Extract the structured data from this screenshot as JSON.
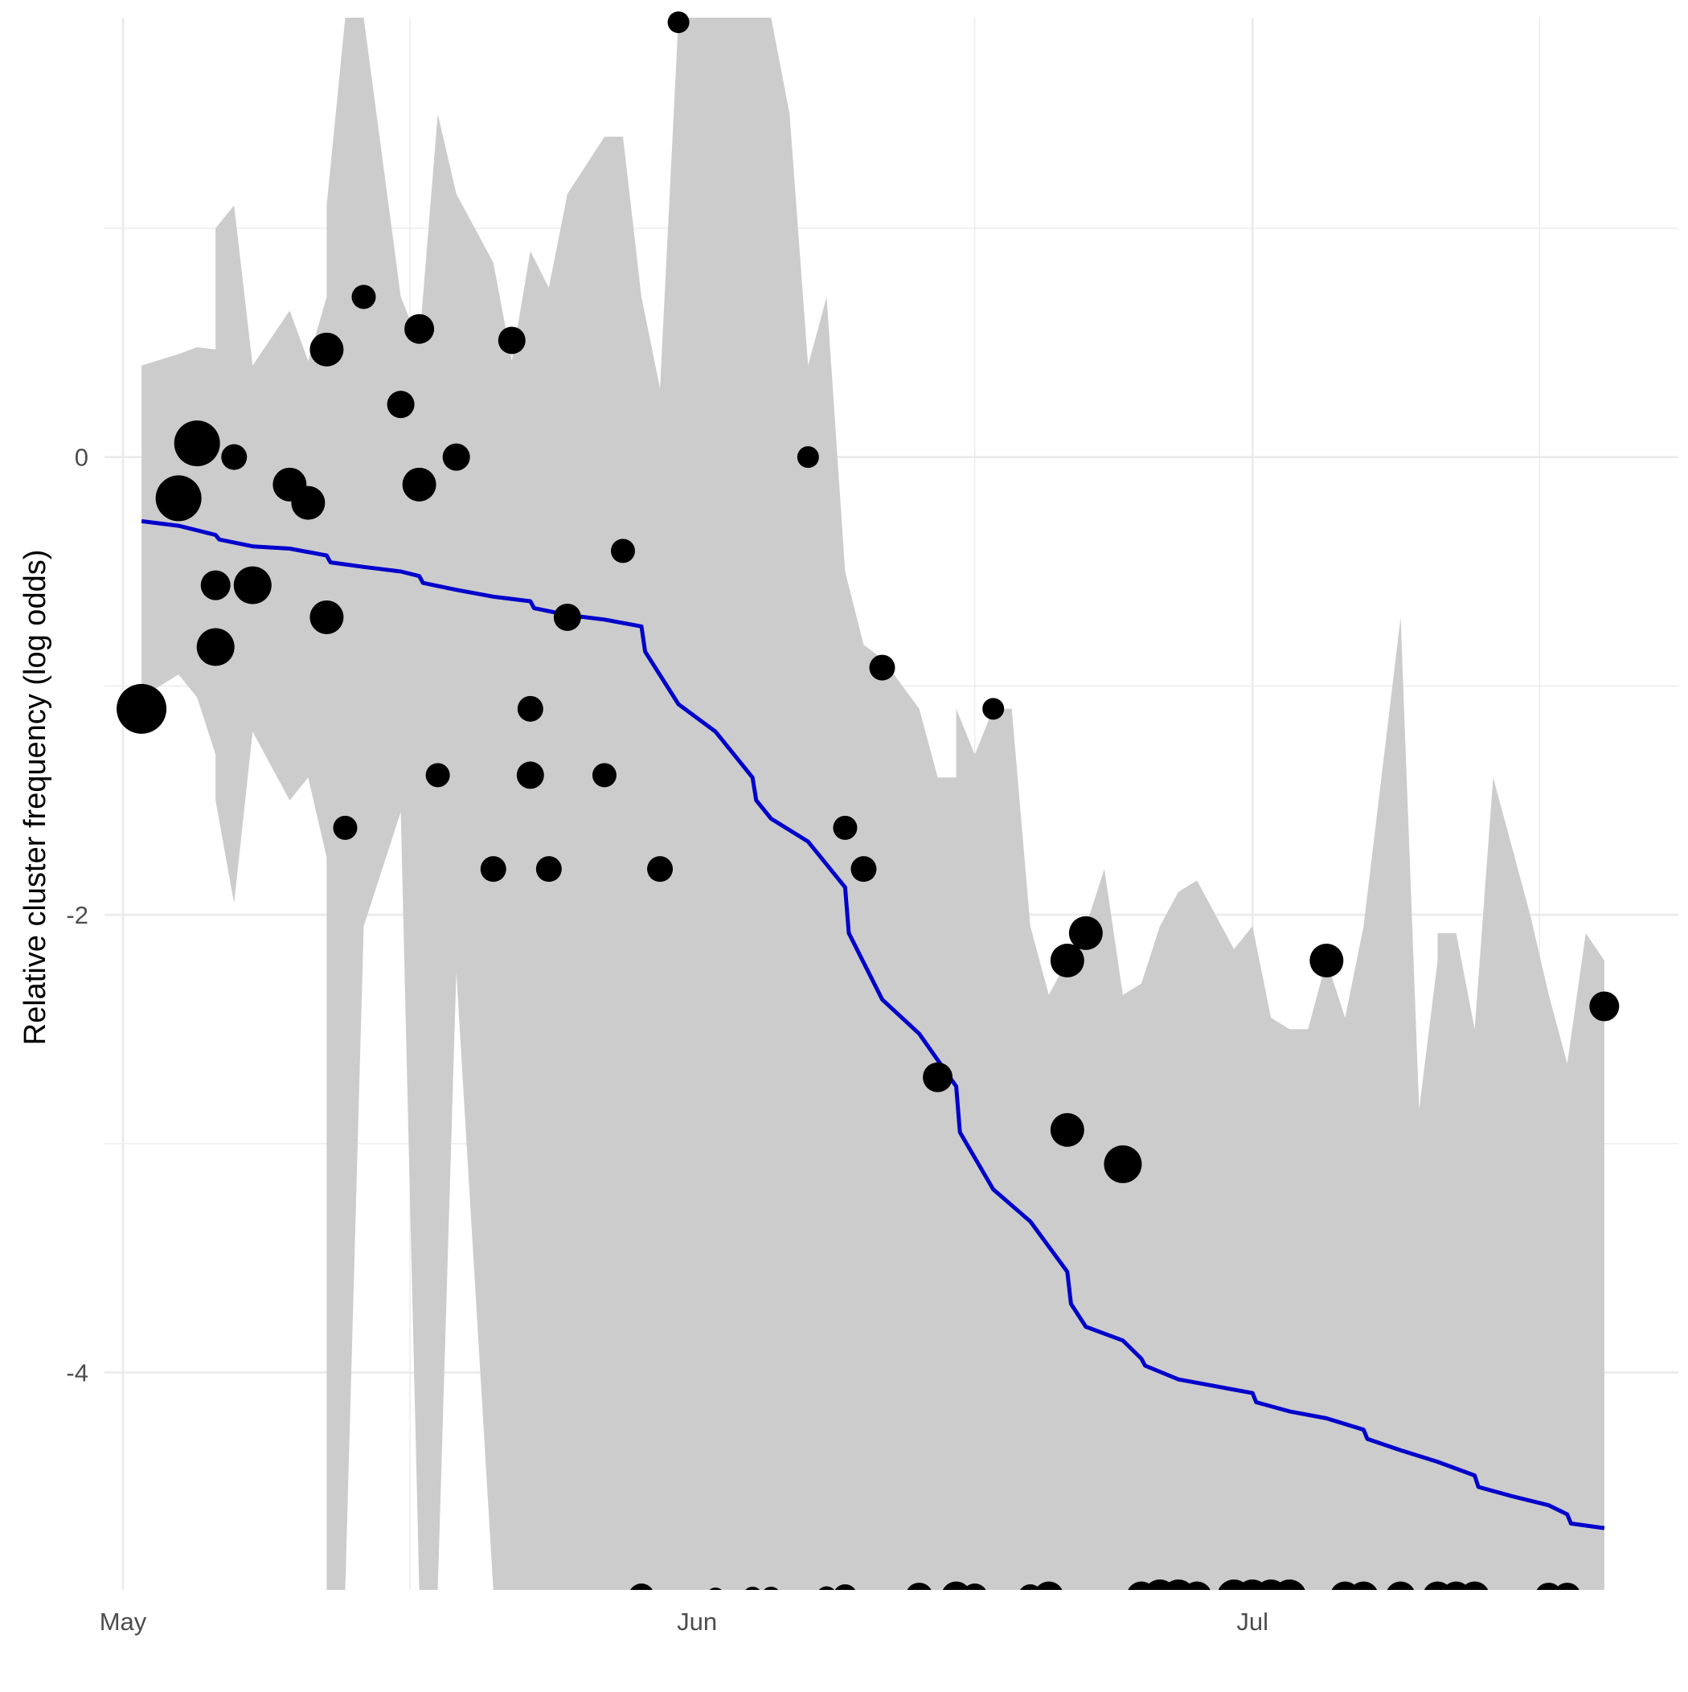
{
  "chart_data": {
    "type": "scatter",
    "title": "",
    "xlabel": "",
    "ylabel": "Relative cluster frequency (log odds)",
    "x_ticks": [
      "May",
      "Jun",
      "Jul"
    ],
    "y_ticks": [
      "0",
      "-2",
      "-4"
    ],
    "x_tick_values": [
      0,
      31,
      61
    ],
    "y_tick_values": [
      0,
      -2,
      -4
    ],
    "xlim": [
      -1,
      84
    ],
    "ylim": [
      -4.95,
      1.92
    ],
    "grid": true,
    "legend": "none",
    "colors": {
      "ribbon": "#cccccc",
      "line": "#0000cc",
      "points": "#000000",
      "grid": "#ebebeb"
    },
    "points_note": "x = days since 1 May; size = relative sample weight",
    "points": [
      {
        "x": 1,
        "y": -1.1,
        "size": 5
      },
      {
        "x": 3,
        "y": -0.18,
        "size": 4.5
      },
      {
        "x": 4,
        "y": 0.06,
        "size": 4.5
      },
      {
        "x": 5,
        "y": -0.56,
        "size": 2.5
      },
      {
        "x": 5,
        "y": -0.83,
        "size": 3.5
      },
      {
        "x": 6,
        "y": 0.0,
        "size": 2
      },
      {
        "x": 7,
        "y": -0.56,
        "size": 3.5
      },
      {
        "x": 9,
        "y": -0.12,
        "size": 3
      },
      {
        "x": 10,
        "y": -0.2,
        "size": 3
      },
      {
        "x": 11,
        "y": 0.47,
        "size": 3
      },
      {
        "x": 11,
        "y": -0.7,
        "size": 3
      },
      {
        "x": 12,
        "y": -1.62,
        "size": 1.8
      },
      {
        "x": 13,
        "y": 0.7,
        "size": 1.8
      },
      {
        "x": 15,
        "y": 0.23,
        "size": 2.2
      },
      {
        "x": 16,
        "y": 0.56,
        "size": 2.5
      },
      {
        "x": 16,
        "y": -0.12,
        "size": 3
      },
      {
        "x": 17,
        "y": -1.39,
        "size": 1.8
      },
      {
        "x": 18,
        "y": 0.0,
        "size": 2.2
      },
      {
        "x": 20,
        "y": -1.8,
        "size": 2
      },
      {
        "x": 21,
        "y": 0.51,
        "size": 2.2
      },
      {
        "x": 22,
        "y": -1.1,
        "size": 2
      },
      {
        "x": 22,
        "y": -1.39,
        "size": 2.2
      },
      {
        "x": 23,
        "y": -1.8,
        "size": 2
      },
      {
        "x": 24,
        "y": -0.7,
        "size": 2.2
      },
      {
        "x": 26,
        "y": -1.39,
        "size": 1.8
      },
      {
        "x": 27,
        "y": -0.41,
        "size": 1.8
      },
      {
        "x": 29,
        "y": -1.8,
        "size": 2
      },
      {
        "x": 30,
        "y": 1.9,
        "size": 1.5
      },
      {
        "x": 37,
        "y": 0.0,
        "size": 1.5
      },
      {
        "x": 39,
        "y": -1.62,
        "size": 1.8
      },
      {
        "x": 40,
        "y": -1.8,
        "size": 2
      },
      {
        "x": 41,
        "y": -0.92,
        "size": 2
      },
      {
        "x": 44,
        "y": -2.71,
        "size": 2.5
      },
      {
        "x": 47,
        "y": -1.1,
        "size": 1.5
      },
      {
        "x": 51,
        "y": -2.2,
        "size": 3
      },
      {
        "x": 51,
        "y": -2.94,
        "size": 3
      },
      {
        "x": 52,
        "y": -2.08,
        "size": 3
      },
      {
        "x": 54,
        "y": -3.09,
        "size": 3.5
      },
      {
        "x": 65,
        "y": -2.2,
        "size": 3
      },
      {
        "x": 80,
        "y": -2.4,
        "size": 2.5
      }
    ],
    "bottom_points_note": "observations with zero counts, clipped at the lower plot edge",
    "bottom_points": [
      {
        "x": 28,
        "size": 2
      },
      {
        "x": 32,
        "size": 1
      },
      {
        "x": 34,
        "size": 1.2
      },
      {
        "x": 35,
        "size": 1.2
      },
      {
        "x": 38,
        "size": 1.3
      },
      {
        "x": 39,
        "size": 1.8
      },
      {
        "x": 43,
        "size": 2.2
      },
      {
        "x": 45,
        "size": 2.5
      },
      {
        "x": 46,
        "size": 2
      },
      {
        "x": 49,
        "size": 1.8
      },
      {
        "x": 50,
        "size": 2.5
      },
      {
        "x": 55,
        "size": 2.5
      },
      {
        "x": 56,
        "size": 3
      },
      {
        "x": 57,
        "size": 3
      },
      {
        "x": 58,
        "size": 2.5
      },
      {
        "x": 60,
        "size": 3
      },
      {
        "x": 61,
        "size": 3
      },
      {
        "x": 62,
        "size": 3
      },
      {
        "x": 63,
        "size": 3
      },
      {
        "x": 66,
        "size": 2.5
      },
      {
        "x": 67,
        "size": 2.5
      },
      {
        "x": 69,
        "size": 2.5
      },
      {
        "x": 71,
        "size": 2.5
      },
      {
        "x": 72,
        "size": 2.5
      },
      {
        "x": 73,
        "size": 2.5
      },
      {
        "x": 77,
        "size": 2.2
      },
      {
        "x": 78,
        "size": 2.2
      }
    ],
    "fit_line": {
      "name": "",
      "x": [
        1,
        3,
        5,
        5.2,
        7,
        9,
        11,
        11.2,
        13,
        15,
        16,
        16.2,
        18,
        20,
        22,
        22.2,
        24,
        26,
        28,
        28.2,
        30,
        32,
        34,
        34.2,
        35,
        37,
        39,
        39.2,
        41,
        43,
        45,
        45.2,
        47,
        49,
        51,
        51.2,
        52,
        54,
        55,
        55.2,
        57,
        59,
        61,
        61.2,
        63,
        65,
        67,
        67.2,
        69,
        71,
        73,
        73.2,
        75,
        77,
        78,
        78.2,
        80
      ],
      "y": [
        -0.28,
        -0.3,
        -0.34,
        -0.36,
        -0.39,
        -0.4,
        -0.43,
        -0.46,
        -0.48,
        -0.5,
        -0.52,
        -0.55,
        -0.58,
        -0.61,
        -0.63,
        -0.66,
        -0.69,
        -0.71,
        -0.74,
        -0.85,
        -1.08,
        -1.2,
        -1.4,
        -1.5,
        -1.58,
        -1.68,
        -1.88,
        -2.08,
        -2.37,
        -2.52,
        -2.75,
        -2.95,
        -3.2,
        -3.34,
        -3.56,
        -3.7,
        -3.8,
        -3.86,
        -3.94,
        -3.97,
        -4.03,
        -4.06,
        -4.09,
        -4.13,
        -4.17,
        -4.2,
        -4.25,
        -4.29,
        -4.34,
        -4.39,
        -4.45,
        -4.5,
        -4.54,
        -4.58,
        -4.62,
        -4.66,
        -4.68
      ]
    },
    "ribbon": {
      "x": [
        1,
        3,
        4,
        5,
        5,
        6,
        7,
        9,
        10,
        11,
        11,
        12,
        13,
        15,
        16,
        16,
        17,
        18,
        20,
        21,
        22,
        22,
        23,
        24,
        26,
        27,
        28,
        29,
        30,
        31,
        35,
        36,
        37,
        38,
        39,
        40,
        41,
        43,
        44,
        45,
        45,
        46,
        47,
        48,
        49,
        50,
        51,
        52,
        53,
        54,
        55,
        56,
        57,
        58,
        59,
        60,
        61,
        62,
        63,
        64,
        65,
        66,
        67,
        69,
        70,
        71,
        71,
        72,
        73,
        74,
        75,
        76,
        77,
        78,
        79,
        80
      ],
      "upper": [
        0.4,
        0.45,
        0.48,
        0.47,
        1.0,
        1.1,
        0.4,
        0.64,
        0.42,
        0.7,
        1.1,
        1.92,
        1.92,
        0.7,
        0.5,
        0.5,
        1.5,
        1.15,
        0.85,
        0.42,
        0.9,
        0.9,
        0.74,
        1.15,
        1.4,
        1.4,
        0.7,
        0.3,
        1.92,
        1.92,
        1.92,
        1.5,
        0.4,
        0.7,
        -0.5,
        -0.82,
        -0.88,
        -1.1,
        -1.4,
        -1.4,
        -1.1,
        -1.3,
        -1.1,
        -1.1,
        -2.05,
        -2.35,
        -2.2,
        -2.05,
        -1.8,
        -2.35,
        -2.3,
        -2.05,
        -1.9,
        -1.85,
        -2.0,
        -2.15,
        -2.05,
        -2.45,
        -2.5,
        -2.5,
        -2.2,
        -2.45,
        -2.05,
        -0.7,
        -2.85,
        -2.2,
        -2.08,
        -2.08,
        -2.5,
        -1.4,
        -1.7,
        -2.0,
        -2.35,
        -2.65,
        -2.08,
        -2.2
      ],
      "lower": [
        -1.05,
        -0.95,
        -1.05,
        -1.3,
        -1.5,
        -1.95,
        -1.2,
        -1.5,
        -1.4,
        -1.75,
        -4.95,
        -4.95,
        -2.05,
        -1.55,
        -4.95,
        -4.95,
        -4.95,
        -2.25,
        -4.95,
        -4.95,
        -4.95,
        -4.95,
        -4.95,
        -4.95,
        -4.95,
        -4.95,
        -4.95,
        -4.95,
        -4.95,
        -4.95,
        -4.95,
        -4.95,
        -4.95,
        -4.95,
        -4.95,
        -4.95,
        -4.95,
        -4.95,
        -4.95,
        -4.95,
        -4.95,
        -4.95,
        -4.95,
        -4.95,
        -4.95,
        -4.95,
        -4.95,
        -4.95,
        -4.95,
        -4.95,
        -4.95,
        -4.95,
        -4.95,
        -4.95,
        -4.95,
        -4.95,
        -4.95,
        -4.95,
        -4.95,
        -4.95,
        -4.95,
        -4.95,
        -4.95,
        -4.95,
        -4.95,
        -4.95,
        -4.95,
        -4.95,
        -4.95,
        -4.95,
        -4.95,
        -4.95,
        -4.95,
        -4.95,
        -4.95,
        -4.95
      ]
    }
  }
}
